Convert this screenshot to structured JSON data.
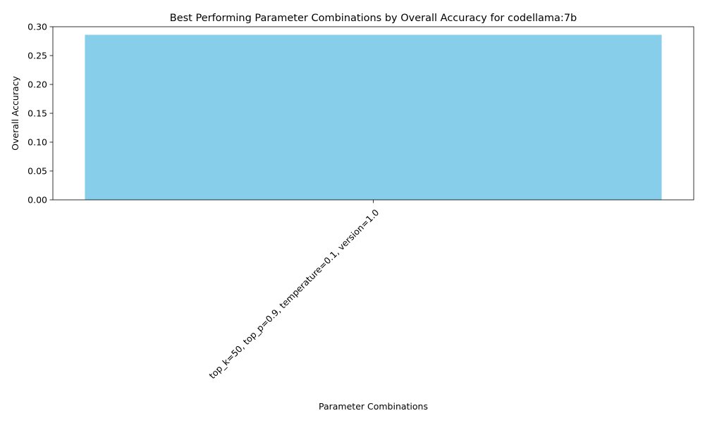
{
  "chart_data": {
    "type": "bar",
    "title": "Best Performing Parameter Combinations by Overall Accuracy for codellama:7b",
    "xlabel": "Parameter Combinations",
    "ylabel": "Overall Accuracy",
    "categories": [
      "top_k=50, top_p=0.9, temperature=0.1, version=1.0"
    ],
    "values": [
      0.286
    ],
    "ylim": [
      0,
      0.3
    ],
    "yticks": [
      "0.00",
      "0.05",
      "0.10",
      "0.15",
      "0.20",
      "0.25",
      "0.30"
    ],
    "grid": false,
    "bar_color": "#87CEEB",
    "x_tick_rotation_deg": 45
  }
}
